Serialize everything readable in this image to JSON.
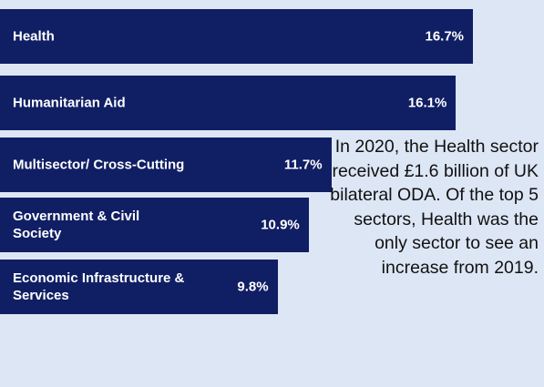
{
  "chart_data": {
    "type": "bar",
    "orientation": "horizontal",
    "categories": [
      "Health",
      "Humanitarian Aid",
      "Multisector/ Cross-Cutting",
      "Government & Civil Society",
      "Economic Infrastructure & Services"
    ],
    "values": [
      16.7,
      16.1,
      11.7,
      10.9,
      9.8
    ],
    "value_labels": [
      "16.7%",
      "16.1%",
      "11.7%",
      "10.9%",
      "9.8%"
    ],
    "color": "#101f64",
    "annotation": "In 2020, the Health sector received £1.6 billion of UK bilateral ODA. Of the top 5 sectors, Health was the only sector to see an increase from 2019."
  }
}
